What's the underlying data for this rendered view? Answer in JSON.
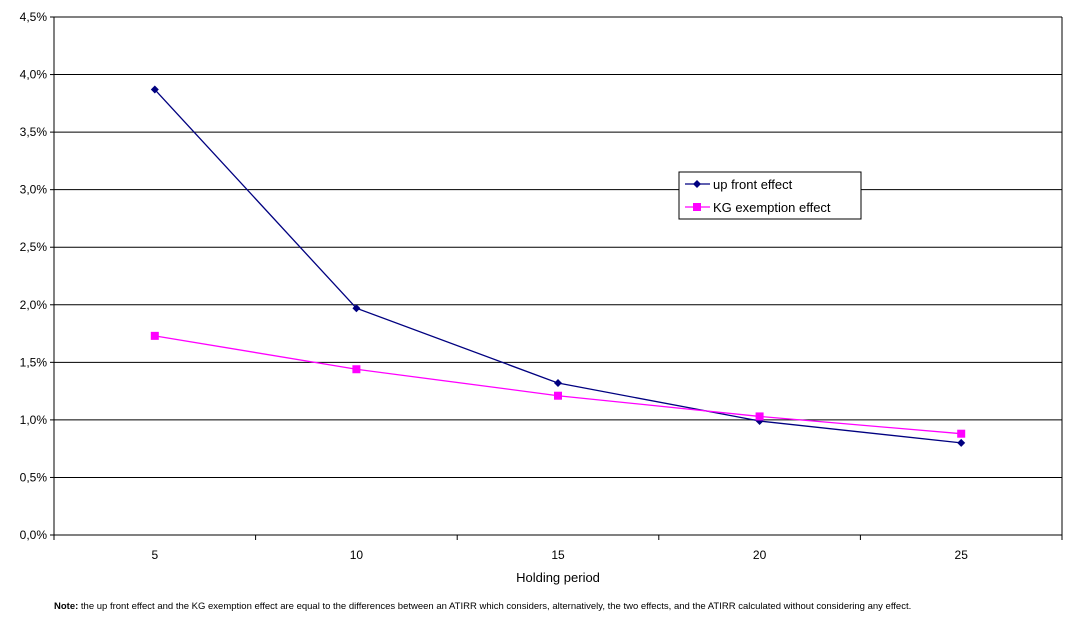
{
  "chart_data": {
    "type": "line",
    "title": "",
    "xlabel": "Holding period",
    "ylabel": "",
    "categories": [
      "5",
      "10",
      "15",
      "20",
      "25"
    ],
    "ylim": [
      0,
      0.045
    ],
    "y_ticks": [
      "0,0%",
      "0,5%",
      "1,0%",
      "1,5%",
      "2,0%",
      "2,5%",
      "3,0%",
      "3,5%",
      "4,0%",
      "4,5%"
    ],
    "y_tick_values": [
      0,
      0.005,
      0.01,
      0.015,
      0.02,
      0.025,
      0.03,
      0.035,
      0.04,
      0.045
    ],
    "grid": "horizontal",
    "legend_placement": "right",
    "series": [
      {
        "name": "up front effect",
        "values": [
          0.0387,
          0.0197,
          0.0132,
          0.0099,
          0.008
        ],
        "color": "#000080",
        "marker": "diamond"
      },
      {
        "name": "KG exemption effect",
        "values": [
          0.0173,
          0.0144,
          0.0121,
          0.0103,
          0.0088
        ],
        "color": "#ff00ff",
        "marker": "square"
      }
    ]
  },
  "note": {
    "label": "Note:",
    "text": " the up front effect and the KG exemption effect are equal to the differences between an ATIRR which considers, alternatively, the two effects, and the ATIRR calculated without considering any effect."
  }
}
